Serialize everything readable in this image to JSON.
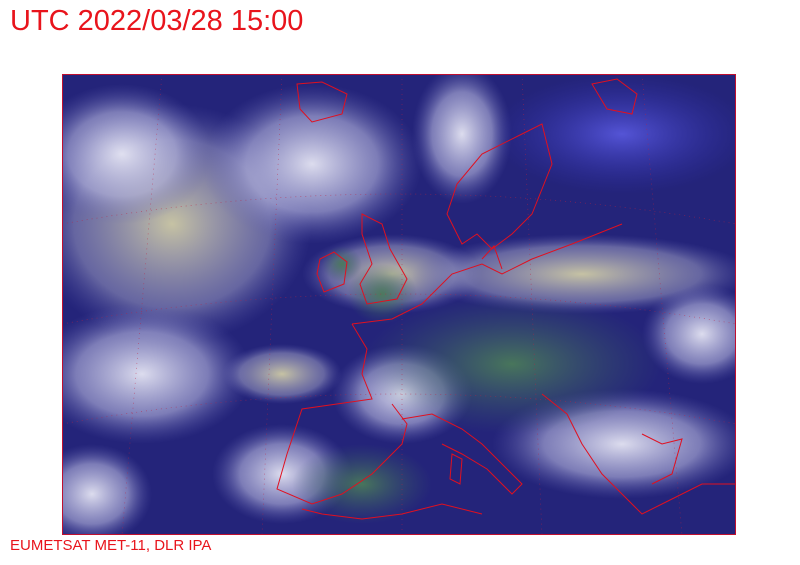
{
  "header": {
    "timestamp": "UTC 2022/03/28 15:00"
  },
  "imagery": {
    "colors": {
      "ocean": "#24247a",
      "cloud": "#d8d8f0",
      "land": "#3d6a4a",
      "coastline": "#e01020",
      "text": "#e8141c"
    }
  },
  "footer": {
    "credit": "EUMETSAT MET-11, DLR IPA"
  }
}
